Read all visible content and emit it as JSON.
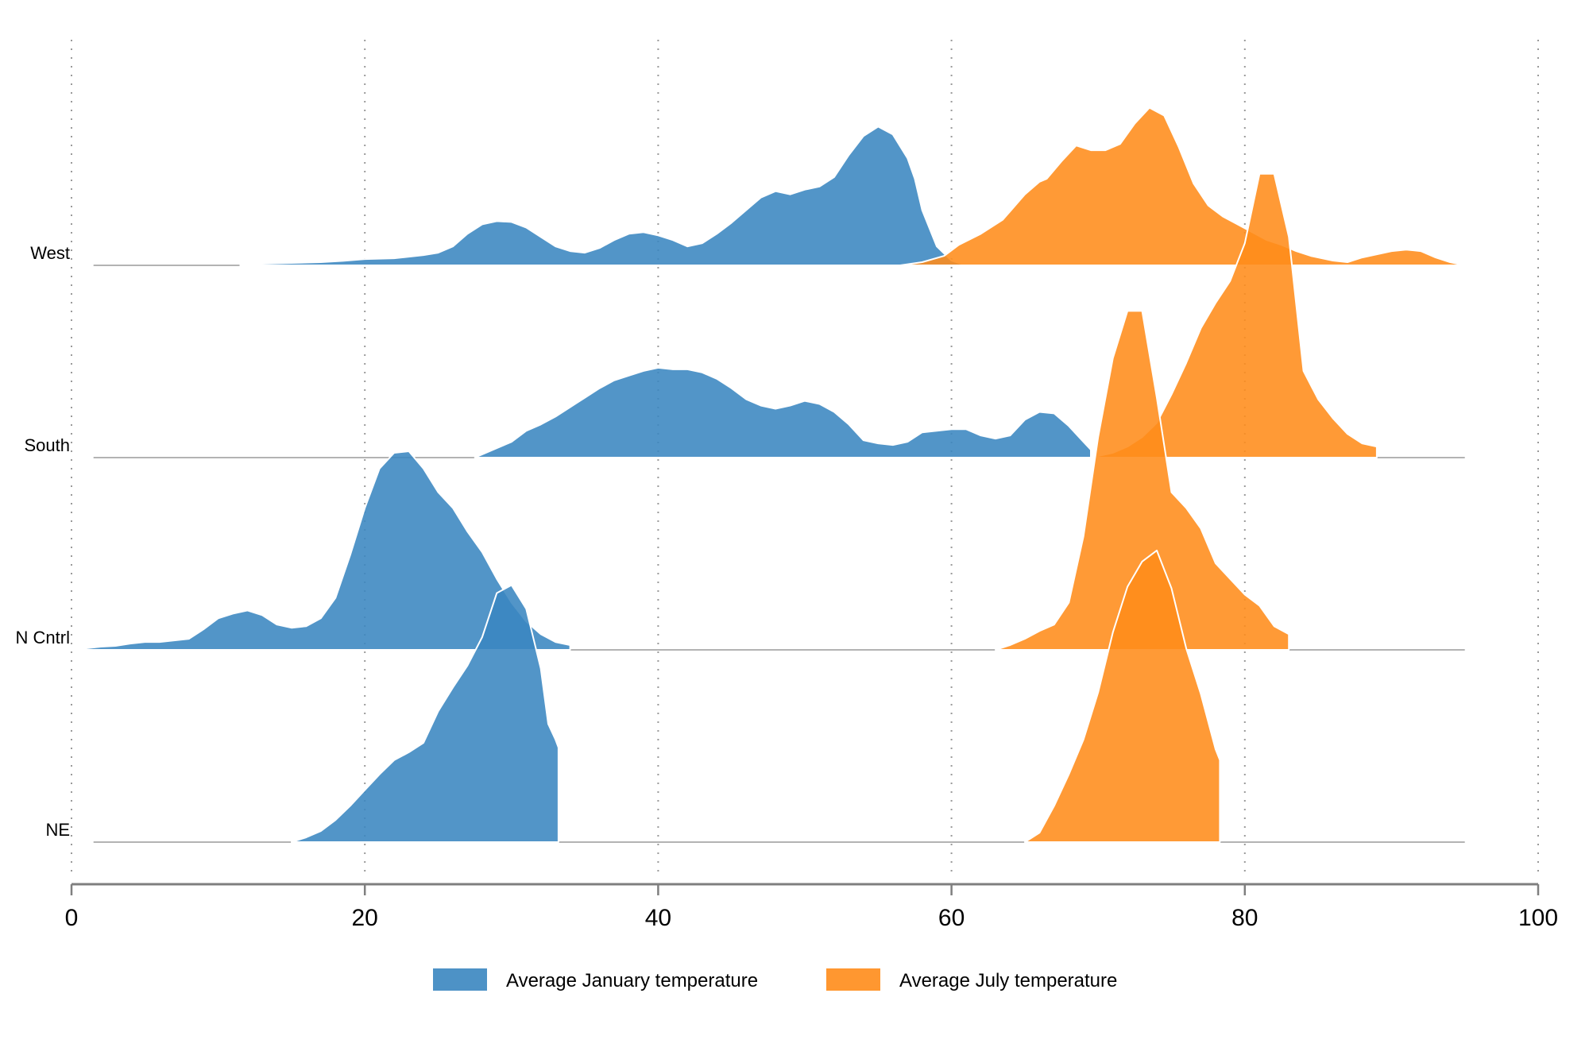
{
  "chart_data": {
    "type": "ridgeline",
    "xlim": [
      0,
      100
    ],
    "x_ticks": [
      0,
      20,
      40,
      60,
      80,
      100
    ],
    "x_tick_labels": [
      "0",
      "20",
      "40",
      "60",
      "80",
      "100"
    ],
    "grid": "vertical-dotted",
    "legend_position": "bottom",
    "categories": [
      "West",
      "South",
      "N Cntrl",
      "NE"
    ],
    "colors": {
      "jan": "#3a86c0",
      "jul": "#ff8c1a",
      "baseline": "#9a9a9a",
      "axis": "#7f7f7f",
      "grid": "#9a9a9a"
    },
    "series": [
      {
        "name": "Average January temperature",
        "key": "jan",
        "color": "#3a86c0",
        "ridges": [
          {
            "category": "West",
            "points": [
              [
                11.5,
                0
              ],
              [
                13,
                0.01
              ],
              [
                15,
                0.015
              ],
              [
                17,
                0.02
              ],
              [
                18.5,
                0.028
              ],
              [
                20,
                0.04
              ],
              [
                22,
                0.045
              ],
              [
                24,
                0.065
              ],
              [
                25,
                0.08
              ],
              [
                26,
                0.12
              ],
              [
                27,
                0.2
              ],
              [
                28,
                0.26
              ],
              [
                29,
                0.28
              ],
              [
                30,
                0.275
              ],
              [
                31,
                0.24
              ],
              [
                32,
                0.18
              ],
              [
                33,
                0.12
              ],
              [
                34,
                0.09
              ],
              [
                35,
                0.08
              ],
              [
                36,
                0.11
              ],
              [
                37,
                0.16
              ],
              [
                38,
                0.2
              ],
              [
                39,
                0.21
              ],
              [
                40,
                0.19
              ],
              [
                41,
                0.16
              ],
              [
                42,
                0.12
              ],
              [
                43,
                0.14
              ],
              [
                44,
                0.2
              ],
              [
                45,
                0.27
              ],
              [
                46,
                0.35
              ],
              [
                47,
                0.43
              ],
              [
                48,
                0.47
              ],
              [
                49,
                0.45
              ],
              [
                50,
                0.48
              ],
              [
                51,
                0.5
              ],
              [
                52,
                0.56
              ],
              [
                53,
                0.7
              ],
              [
                54,
                0.82
              ],
              [
                55,
                0.88
              ],
              [
                56,
                0.83
              ],
              [
                57,
                0.68
              ],
              [
                57.5,
                0.55
              ],
              [
                58,
                0.35
              ],
              [
                59,
                0.12
              ],
              [
                60,
                0.03
              ],
              [
                61,
                0
              ]
            ]
          },
          {
            "category": "South",
            "points": [
              [
                27.5,
                0
              ],
              [
                28,
                0.02
              ],
              [
                29,
                0.06
              ],
              [
                30,
                0.1
              ],
              [
                31,
                0.17
              ],
              [
                32,
                0.21
              ],
              [
                33,
                0.26
              ],
              [
                34,
                0.32
              ],
              [
                35,
                0.38
              ],
              [
                36,
                0.44
              ],
              [
                37,
                0.49
              ],
              [
                38,
                0.52
              ],
              [
                39,
                0.55
              ],
              [
                40,
                0.57
              ],
              [
                41,
                0.56
              ],
              [
                42,
                0.56
              ],
              [
                43,
                0.54
              ],
              [
                44,
                0.5
              ],
              [
                45,
                0.44
              ],
              [
                46,
                0.37
              ],
              [
                47,
                0.33
              ],
              [
                48,
                0.31
              ],
              [
                49,
                0.33
              ],
              [
                50,
                0.36
              ],
              [
                51,
                0.34
              ],
              [
                52,
                0.29
              ],
              [
                53,
                0.21
              ],
              [
                54,
                0.11
              ],
              [
                55,
                0.09
              ],
              [
                56,
                0.08
              ],
              [
                57,
                0.1
              ],
              [
                58,
                0.16
              ],
              [
                59,
                0.17
              ],
              [
                60,
                0.18
              ],
              [
                61,
                0.18
              ],
              [
                62,
                0.14
              ],
              [
                63,
                0.12
              ],
              [
                64,
                0.14
              ],
              [
                65,
                0.24
              ],
              [
                66,
                0.29
              ],
              [
                67,
                0.28
              ],
              [
                68,
                0.2
              ],
              [
                69,
                0.1
              ],
              [
                69.5,
                0.05
              ]
            ]
          },
          {
            "category": "N Cntrl",
            "points": [
              [
                0.5,
                0
              ],
              [
                1,
                0.01
              ],
              [
                2,
                0.02
              ],
              [
                3,
                0.025
              ],
              [
                4,
                0.04
              ],
              [
                5,
                0.05
              ],
              [
                6,
                0.05
              ],
              [
                7,
                0.06
              ],
              [
                8,
                0.07
              ],
              [
                9,
                0.13
              ],
              [
                10,
                0.2
              ],
              [
                11,
                0.23
              ],
              [
                12,
                0.25
              ],
              [
                13,
                0.22
              ],
              [
                14,
                0.16
              ],
              [
                15,
                0.14
              ],
              [
                16,
                0.15
              ],
              [
                17,
                0.2
              ],
              [
                18,
                0.33
              ],
              [
                19,
                0.6
              ],
              [
                20,
                0.9
              ],
              [
                21,
                1.15
              ],
              [
                22,
                1.25
              ],
              [
                23,
                1.26
              ],
              [
                24,
                1.15
              ],
              [
                25,
                1.0
              ],
              [
                26,
                0.9
              ],
              [
                27,
                0.75
              ],
              [
                28,
                0.62
              ],
              [
                29,
                0.45
              ],
              [
                30,
                0.3
              ],
              [
                31,
                0.18
              ],
              [
                32,
                0.1
              ],
              [
                33,
                0.05
              ],
              [
                34,
                0.03
              ]
            ]
          },
          {
            "category": "NE",
            "points": [
              [
                15,
                0
              ],
              [
                16,
                0.03
              ],
              [
                17,
                0.07
              ],
              [
                18,
                0.14
              ],
              [
                19,
                0.23
              ],
              [
                20,
                0.33
              ],
              [
                21,
                0.43
              ],
              [
                22,
                0.52
              ],
              [
                23,
                0.57
              ],
              [
                24,
                0.63
              ],
              [
                25,
                0.83
              ],
              [
                26,
                0.98
              ],
              [
                27,
                1.12
              ],
              [
                28,
                1.3
              ],
              [
                29,
                1.58
              ],
              [
                30,
                1.63
              ],
              [
                31,
                1.48
              ],
              [
                32,
                1.1
              ],
              [
                32.5,
                0.75
              ],
              [
                33,
                0.65
              ],
              [
                33.2,
                0.6
              ]
            ]
          }
        ]
      },
      {
        "name": "Average July temperature",
        "key": "jul",
        "color": "#ff8c1a",
        "ridges": [
          {
            "category": "West",
            "points": [
              [
                56.5,
                0
              ],
              [
                58,
                0.02
              ],
              [
                59.5,
                0.06
              ],
              [
                60.5,
                0.13
              ],
              [
                62,
                0.2
              ],
              [
                63.5,
                0.29
              ],
              [
                65,
                0.45
              ],
              [
                66,
                0.53
              ],
              [
                66.5,
                0.55
              ],
              [
                67.5,
                0.66
              ],
              [
                68.5,
                0.76
              ],
              [
                69.5,
                0.73
              ],
              [
                70.5,
                0.73
              ],
              [
                71.5,
                0.77
              ],
              [
                72.5,
                0.9
              ],
              [
                73.5,
                1.0
              ],
              [
                74.5,
                0.95
              ],
              [
                75.5,
                0.75
              ],
              [
                76.5,
                0.52
              ],
              [
                77.5,
                0.38
              ],
              [
                78.5,
                0.31
              ],
              [
                79.5,
                0.26
              ],
              [
                80.5,
                0.21
              ],
              [
                81.5,
                0.16
              ],
              [
                82.5,
                0.13
              ],
              [
                83.5,
                0.09
              ],
              [
                84.5,
                0.06
              ],
              [
                86,
                0.03
              ],
              [
                87,
                0.02
              ],
              [
                88,
                0.05
              ],
              [
                89,
                0.07
              ],
              [
                90,
                0.09
              ],
              [
                91,
                0.1
              ],
              [
                92,
                0.09
              ],
              [
                93,
                0.05
              ],
              [
                94,
                0.02
              ],
              [
                95,
                0
              ]
            ]
          },
          {
            "category": "South",
            "points": [
              [
                69.5,
                0
              ],
              [
                70,
                0.01
              ],
              [
                71,
                0.03
              ],
              [
                72,
                0.07
              ],
              [
                73,
                0.13
              ],
              [
                74,
                0.22
              ],
              [
                75,
                0.4
              ],
              [
                76,
                0.6
              ],
              [
                77,
                0.82
              ],
              [
                78,
                0.98
              ],
              [
                79,
                1.12
              ],
              [
                80,
                1.36
              ],
              [
                81,
                1.8
              ],
              [
                82,
                1.8
              ],
              [
                83,
                1.4
              ],
              [
                84,
                0.55
              ],
              [
                85,
                0.37
              ],
              [
                86,
                0.25
              ],
              [
                87,
                0.15
              ],
              [
                88,
                0.09
              ],
              [
                89,
                0.07
              ]
            ]
          },
          {
            "category": "N Cntrl",
            "points": [
              [
                63,
                0
              ],
              [
                64,
                0.03
              ],
              [
                65,
                0.07
              ],
              [
                66,
                0.12
              ],
              [
                67,
                0.16
              ],
              [
                68,
                0.3
              ],
              [
                69,
                0.72
              ],
              [
                70,
                1.35
              ],
              [
                71,
                1.85
              ],
              [
                72,
                2.15
              ],
              [
                73,
                2.15
              ],
              [
                74,
                1.6
              ],
              [
                75,
                1.0
              ],
              [
                76,
                0.9
              ],
              [
                77,
                0.77
              ],
              [
                78,
                0.55
              ],
              [
                79,
                0.45
              ],
              [
                80,
                0.35
              ],
              [
                81,
                0.28
              ],
              [
                82,
                0.15
              ],
              [
                83,
                0.1
              ]
            ]
          },
          {
            "category": "NE",
            "points": [
              [
                65,
                0
              ],
              [
                66,
                0.06
              ],
              [
                67,
                0.23
              ],
              [
                68,
                0.43
              ],
              [
                69,
                0.65
              ],
              [
                70,
                0.95
              ],
              [
                71,
                1.33
              ],
              [
                72,
                1.62
              ],
              [
                73,
                1.78
              ],
              [
                74,
                1.85
              ],
              [
                75,
                1.61
              ],
              [
                76,
                1.23
              ],
              [
                77,
                0.94
              ],
              [
                78,
                0.59
              ],
              [
                78.3,
                0.52
              ]
            ]
          }
        ]
      }
    ]
  }
}
